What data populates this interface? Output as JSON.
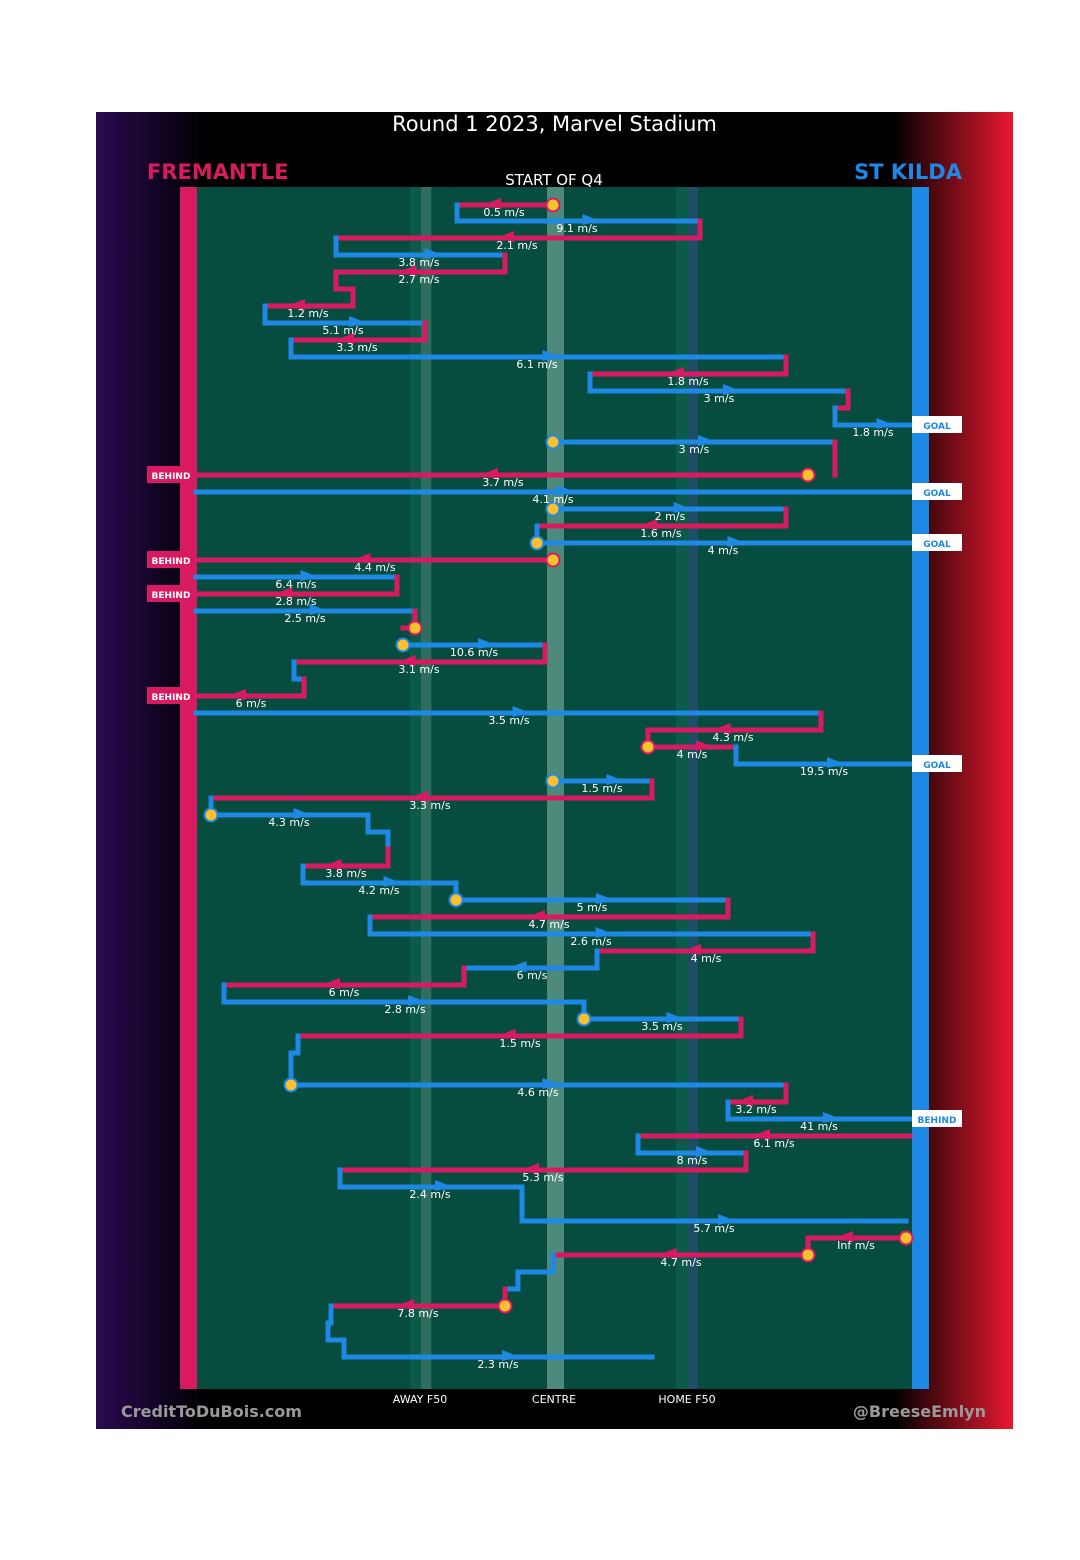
{
  "header": {
    "title": "Round 1 2023, Marvel Stadium",
    "home_team": "FREMANTLE",
    "away_team": "ST KILDA",
    "period": "START OF Q4"
  },
  "footer": {
    "credit_left": "CreditToDuBois.com",
    "credit_right": "@BreeseEmlyn",
    "zone_labels": [
      "AWAY F50",
      "CENTRE",
      "HOME F50"
    ]
  },
  "colors": {
    "fremantle": "#d81b60",
    "st_kilda": "#1e88e5",
    "field": "#064c3f",
    "stoppage_marker": "#fbc02d"
  },
  "chart_data": {
    "type": "line",
    "title": "Round 1 2023, Marvel Stadium",
    "xlabel": "",
    "ylabel": "",
    "x_axis_labels": [
      "AWAY F50",
      "CENTRE",
      "HOME F50"
    ],
    "legend": [
      "FREMANTLE",
      "ST KILDA"
    ],
    "rows": [
      {
        "team": "fremantle",
        "speed": "0.5 m/s"
      },
      {
        "team": "st_kilda",
        "speed": "9.1 m/s"
      },
      {
        "team": "fremantle",
        "speed": "2.1 m/s"
      },
      {
        "team": "st_kilda",
        "speed": "3.8 m/s"
      },
      {
        "team": "fremantle",
        "speed": "2.7 m/s"
      },
      {
        "team": "fremantle",
        "speed": "1.2 m/s"
      },
      {
        "team": "st_kilda",
        "speed": "5.1 m/s"
      },
      {
        "team": "fremantle",
        "speed": "3.3 m/s"
      },
      {
        "team": "st_kilda",
        "speed": "6.1 m/s"
      },
      {
        "team": "fremantle",
        "speed": "1.8 m/s"
      },
      {
        "team": "st_kilda",
        "speed": "3 m/s"
      },
      {
        "team": "st_kilda",
        "speed": "1.8 m/s",
        "result": "GOAL"
      },
      {
        "team": "st_kilda",
        "speed": "3 m/s"
      },
      {
        "team": "fremantle",
        "speed": "3.7 m/s",
        "result": "BEHIND"
      },
      {
        "team": "st_kilda",
        "speed": "4.1 m/s",
        "result": "GOAL"
      },
      {
        "team": "st_kilda",
        "speed": "2 m/s"
      },
      {
        "team": "fremantle",
        "speed": "1.6 m/s"
      },
      {
        "team": "st_kilda",
        "speed": "4 m/s",
        "result": "GOAL"
      },
      {
        "team": "fremantle",
        "speed": "4.4 m/s",
        "result": "BEHIND"
      },
      {
        "team": "st_kilda",
        "speed": "6.4 m/s"
      },
      {
        "team": "fremantle",
        "speed": "2.8 m/s",
        "result": "BEHIND"
      },
      {
        "team": "st_kilda",
        "speed": "2.5 m/s"
      },
      {
        "team": "st_kilda",
        "speed": "10.6 m/s"
      },
      {
        "team": "fremantle",
        "speed": "3.1 m/s"
      },
      {
        "team": "fremantle",
        "speed": "6 m/s",
        "result": "BEHIND"
      },
      {
        "team": "st_kilda",
        "speed": "3.5 m/s"
      },
      {
        "team": "fremantle",
        "speed": "4.3 m/s"
      },
      {
        "team": "fremantle",
        "speed": "4 m/s"
      },
      {
        "team": "st_kilda",
        "speed": "19.5 m/s",
        "result": "GOAL"
      },
      {
        "team": "st_kilda",
        "speed": "1.5 m/s"
      },
      {
        "team": "fremantle",
        "speed": "3.3 m/s"
      },
      {
        "team": "st_kilda",
        "speed": "4.3 m/s"
      },
      {
        "team": "fremantle",
        "speed": "3.8 m/s"
      },
      {
        "team": "st_kilda",
        "speed": "4.2 m/s"
      },
      {
        "team": "st_kilda",
        "speed": "5 m/s"
      },
      {
        "team": "fremantle",
        "speed": "4.7 m/s"
      },
      {
        "team": "st_kilda",
        "speed": "2.6 m/s"
      },
      {
        "team": "fremantle",
        "speed": "4 m/s"
      },
      {
        "team": "st_kilda",
        "speed": "6 m/s"
      },
      {
        "team": "fremantle",
        "speed": "6 m/s"
      },
      {
        "team": "st_kilda",
        "speed": "2.8 m/s"
      },
      {
        "team": "st_kilda",
        "speed": "3.5 m/s"
      },
      {
        "team": "fremantle",
        "speed": "1.5 m/s"
      },
      {
        "team": "st_kilda",
        "speed": "4.6 m/s"
      },
      {
        "team": "fremantle",
        "speed": "3.2 m/s"
      },
      {
        "team": "st_kilda",
        "speed": "41 m/s",
        "result": "BEHIND"
      },
      {
        "team": "fremantle",
        "speed": "6.1 m/s"
      },
      {
        "team": "st_kilda",
        "speed": "8 m/s"
      },
      {
        "team": "fremantle",
        "speed": "5.3 m/s"
      },
      {
        "team": "st_kilda",
        "speed": "2.4 m/s"
      },
      {
        "team": "st_kilda",
        "speed": "5.7 m/s"
      },
      {
        "team": "fremantle",
        "speed": "Inf m/s"
      },
      {
        "team": "fremantle",
        "speed": "4.7 m/s"
      },
      {
        "team": "fremantle",
        "speed": "7.8 m/s"
      },
      {
        "team": "st_kilda",
        "speed": "2.3 m/s"
      }
    ]
  }
}
